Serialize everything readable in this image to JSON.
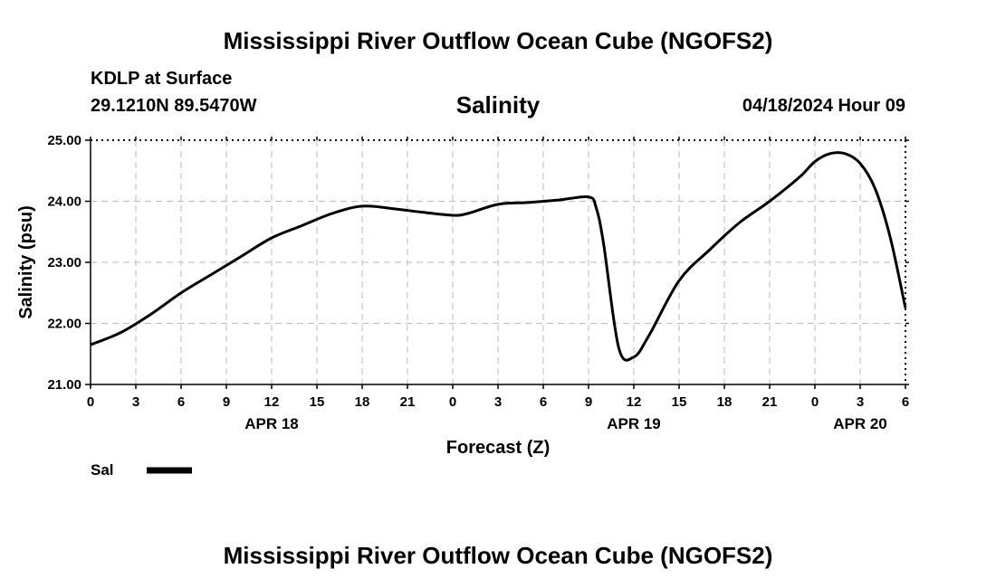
{
  "header": {
    "title": "Mississippi River Outflow Ocean Cube (NGOFS2)",
    "station": "KDLP at Surface",
    "coords": "29.1210N  89.5470W",
    "variable_title": "Salinity",
    "datetime": "04/18/2024 Hour 09"
  },
  "footer": {
    "title": "Mississippi River Outflow Ocean Cube (NGOFS2)"
  },
  "chart_data": {
    "type": "line",
    "ylabel": "Salinity (psu)",
    "xlabel": "Forecast (Z)",
    "ylim": [
      21.0,
      25.0
    ],
    "y_ticks": [
      "21.00",
      "22.00",
      "23.00",
      "24.00",
      "25.00"
    ],
    "x_ticks": [
      "0",
      "3",
      "6",
      "9",
      "12",
      "15",
      "18",
      "21",
      "0",
      "3",
      "6",
      "9",
      "12",
      "15",
      "18",
      "21",
      "0",
      "3",
      "6"
    ],
    "date_labels": [
      {
        "label": "APR 18",
        "at_tick": 4
      },
      {
        "label": "APR 19",
        "at_tick": 12
      },
      {
        "label": "APR 20",
        "at_tick": 17
      }
    ],
    "grid": true,
    "legend": {
      "position": "bottom-left",
      "entries": [
        {
          "name": "Sal",
          "color": "#000000"
        }
      ]
    },
    "series": [
      {
        "name": "Sal",
        "color": "#000000",
        "points": [
          [
            "04/18 00Z",
            21.65
          ],
          [
            "04/18 02Z",
            21.85
          ],
          [
            "04/18 04Z",
            22.15
          ],
          [
            "04/18 06Z",
            22.5
          ],
          [
            "04/18 08Z",
            22.8
          ],
          [
            "04/18 10Z",
            23.1
          ],
          [
            "04/18 12Z",
            23.4
          ],
          [
            "04/18 14Z",
            23.6
          ],
          [
            "04/18 16Z",
            23.8
          ],
          [
            "04/18 18Z",
            23.92
          ],
          [
            "04/18 20Z",
            23.88
          ],
          [
            "04/18 22Z",
            23.82
          ],
          [
            "04/19 00Z",
            23.77
          ],
          [
            "04/19 01Z",
            23.8
          ],
          [
            "04/19 03Z",
            23.95
          ],
          [
            "04/19 05Z",
            23.98
          ],
          [
            "04/19 07Z",
            24.02
          ],
          [
            "04/19 09Z",
            24.07
          ],
          [
            "04/19 09:30Z",
            23.9
          ],
          [
            "04/19 10Z",
            23.3
          ],
          [
            "04/19 11Z",
            21.6
          ],
          [
            "04/19 12Z",
            21.45
          ],
          [
            "04/19 13Z",
            21.8
          ],
          [
            "04/19 15Z",
            22.7
          ],
          [
            "04/19 17Z",
            23.2
          ],
          [
            "04/19 19Z",
            23.65
          ],
          [
            "04/19 21Z",
            24.0
          ],
          [
            "04/19 23Z",
            24.4
          ],
          [
            "04/20 00Z",
            24.65
          ],
          [
            "04/20 01Z",
            24.78
          ],
          [
            "04/20 02Z",
            24.78
          ],
          [
            "04/20 03Z",
            24.62
          ],
          [
            "04/20 04Z",
            24.2
          ],
          [
            "04/20 05Z",
            23.4
          ],
          [
            "04/20 06Z",
            22.25
          ]
        ]
      }
    ]
  }
}
